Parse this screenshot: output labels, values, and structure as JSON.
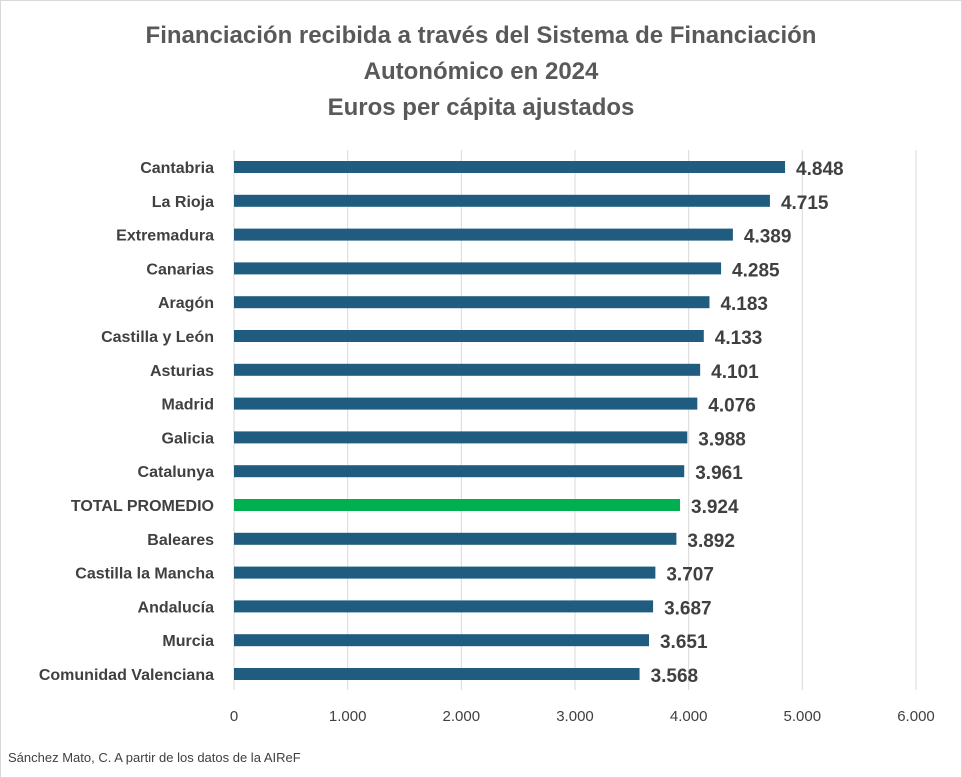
{
  "chart_data": {
    "type": "bar",
    "orientation": "horizontal",
    "title_lines": [
      "Financiación  recibida a través del Sistema de Financiación",
      "Autonómico  en 2024",
      "Euros per cápita ajustados"
    ],
    "categories": [
      "Cantabria",
      "La Rioja",
      "Extremadura",
      "Canarias",
      "Aragón",
      "Castilla y León",
      "Asturias",
      "Madrid",
      "Galicia",
      "Catalunya",
      "TOTAL PROMEDIO",
      "Baleares",
      "Castilla la Mancha",
      "Andalucía",
      "Murcia",
      "Comunidad Valenciana"
    ],
    "values": [
      4848,
      4715,
      4389,
      4285,
      4183,
      4133,
      4101,
      4076,
      3988,
      3961,
      3924,
      3892,
      3707,
      3687,
      3651,
      3568
    ],
    "value_labels": [
      "4.848",
      "4.715",
      "4.389",
      "4.285",
      "4.183",
      "4.133",
      "4.101",
      "4.076",
      "3.988",
      "3.961",
      "3.924",
      "3.892",
      "3.707",
      "3.687",
      "3.651",
      "3.568"
    ],
    "highlight_index": 10,
    "xlim": [
      0,
      6000
    ],
    "xticks": [
      0,
      1000,
      2000,
      3000,
      4000,
      5000,
      6000
    ],
    "xtick_labels": [
      "0",
      "1.000",
      "2.000",
      "3.000",
      "4.000",
      "5.000",
      "6.000"
    ],
    "grid": true,
    "colors": {
      "bar": "#1f5c7f",
      "highlight": "#00b050",
      "grid": "#d9d9d9",
      "text": "#404040",
      "title": "#595959"
    }
  },
  "footer": {
    "source": "Sánchez Mato, C.  A partir de los datos de la AIReF"
  }
}
